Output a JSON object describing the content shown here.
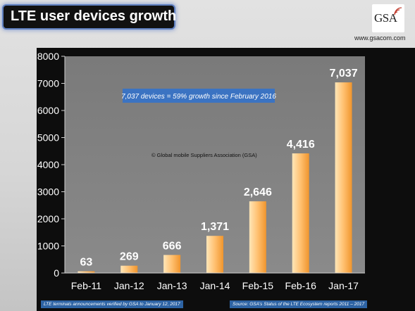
{
  "header": {
    "title": "LTE user devices growth",
    "logo_text": "GSA",
    "website": "www.gsacom.com"
  },
  "chart_data": {
    "type": "bar",
    "categories": [
      "Feb-11",
      "Jan-12",
      "Jan-13",
      "Jan-14",
      "Feb-15",
      "Feb-16",
      "Jan-17"
    ],
    "values": [
      63,
      269,
      666,
      1371,
      2646,
      4416,
      7037
    ],
    "data_labels": [
      "63",
      "269",
      "666",
      "1,371",
      "2,646",
      "4,416",
      "7,037"
    ],
    "ylim": [
      0,
      8000
    ],
    "yticks": [
      0,
      1000,
      2000,
      3000,
      4000,
      5000,
      6000,
      7000,
      8000
    ],
    "grid": false,
    "title": "",
    "xlabel": "",
    "ylabel": "",
    "annotations": {
      "growth_callout": "7,037 devices = 59% growth since February 2016",
      "copyright": "© Global mobile Suppliers Association (GSA)"
    },
    "colors": {
      "bar_light": "#ffe6b8",
      "bar_mid": "#ffc070",
      "bar_dark": "#f0952d",
      "plot_bg": "#7f7f7f",
      "callout_bg": "#3b73c2"
    }
  },
  "footer": {
    "left_note": "LTE terminals announcements verified by GSA to January 12, 2017",
    "right_note": "Source: GSA's Status of the LTE Ecosystem reports 2011 – 2017"
  }
}
